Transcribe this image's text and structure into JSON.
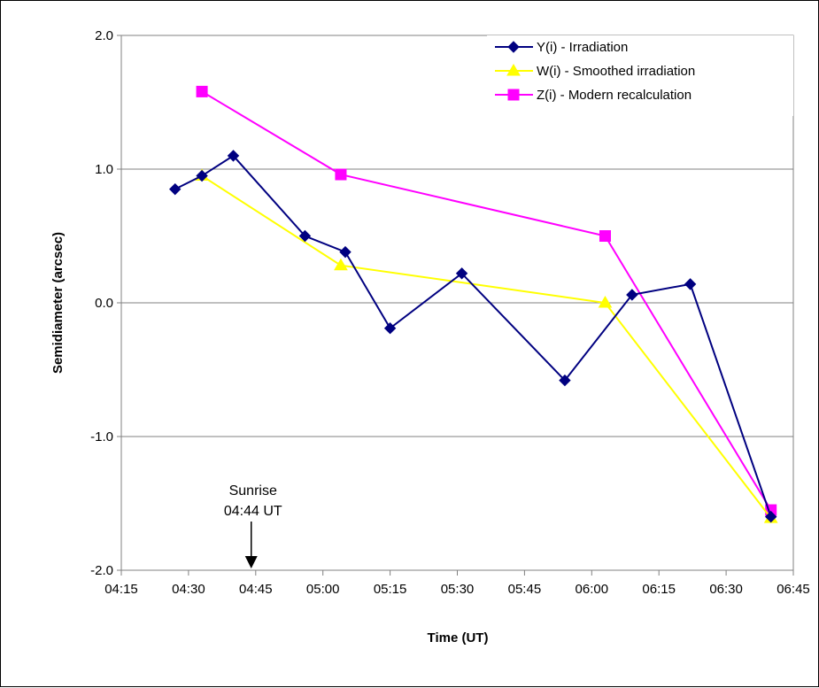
{
  "chart_data": {
    "type": "line",
    "title": "",
    "xlabel": "Time (UT)",
    "ylabel": "Semidiameter  (arcsec)",
    "xlim": [
      "04:15",
      "06:45"
    ],
    "ylim": [
      -2.0,
      2.0
    ],
    "x_tick_labels": [
      "04:15",
      "04:30",
      "04:45",
      "05:00",
      "05:15",
      "05:30",
      "05:45",
      "06:00",
      "06:15",
      "06:30",
      "06:45"
    ],
    "y_tick_labels": [
      "2.0",
      "1.0",
      "0.0",
      "-1.0",
      "-2.0"
    ],
    "y_ticks": [
      2.0,
      1.0,
      0.0,
      -1.0,
      -2.0
    ],
    "grid": "horizontal",
    "legend_position": "top-right",
    "series": [
      {
        "name": "Y(i) - Irradiation",
        "color": "#000080",
        "marker": "diamond",
        "x": [
          "04:27",
          "04:33",
          "04:40",
          "04:56",
          "05:05",
          "05:15",
          "05:31",
          "05:54",
          "06:09",
          "06:22",
          "06:40"
        ],
        "y": [
          0.85,
          0.95,
          1.1,
          0.5,
          0.38,
          -0.19,
          0.22,
          -0.58,
          0.06,
          0.14,
          -1.6
        ]
      },
      {
        "name": "W(i) - Smoothed irradiation",
        "color": "#ffff00",
        "marker": "triangle",
        "x": [
          "04:33",
          "05:04",
          "06:03",
          "06:40"
        ],
        "y": [
          0.95,
          0.28,
          0.0,
          -1.61
        ]
      },
      {
        "name": "Z(i) - Modern recalculation",
        "color": "#ff00ff",
        "marker": "square",
        "x": [
          "04:33",
          "05:04",
          "06:03",
          "06:40"
        ],
        "y": [
          1.58,
          0.96,
          0.5,
          -1.55
        ]
      }
    ],
    "annotations": [
      {
        "lines": [
          "Sunrise",
          "04:44 UT"
        ],
        "x": "04:44",
        "arrow": "down"
      }
    ]
  }
}
